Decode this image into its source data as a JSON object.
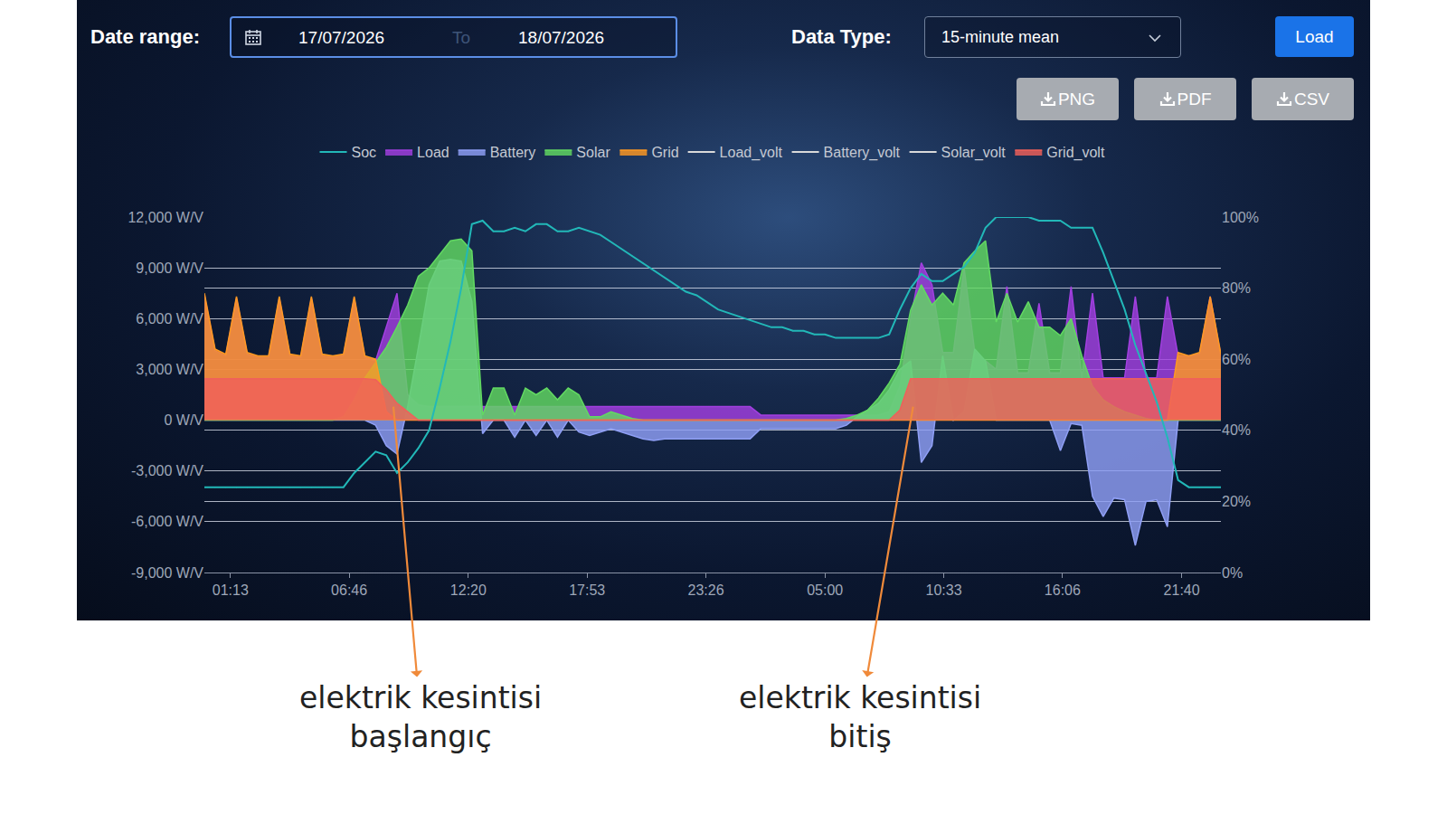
{
  "controls": {
    "date_range": {
      "label": "Date range:",
      "from": "17/07/2026",
      "separator": "To",
      "to": "18/07/2026"
    },
    "data_type": {
      "label": "Data Type:",
      "value": "15-minute mean"
    },
    "load_button": "Load",
    "export_buttons": [
      "PNG",
      "PDF",
      "CSV"
    ]
  },
  "chart_data": {
    "type": "area",
    "x": [
      0,
      30,
      60,
      90,
      120,
      150,
      180,
      210,
      240,
      270,
      300,
      330,
      360,
      390,
      420,
      450,
      480,
      510,
      540,
      570,
      600,
      630,
      660,
      690,
      720,
      750,
      780,
      810,
      840,
      870,
      900,
      930,
      960,
      990,
      1020,
      1050,
      1080,
      1110,
      1140,
      1170,
      1200,
      1230,
      1260,
      1290,
      1320,
      1350,
      1380,
      1410,
      1440,
      1470,
      1500,
      1530,
      1560,
      1590,
      1620,
      1650,
      1680,
      1710,
      1740,
      1770,
      1800,
      1830,
      1860,
      1890,
      1920,
      1950,
      1980,
      2010,
      2040,
      2070,
      2100,
      2130,
      2160,
      2190,
      2220,
      2250,
      2280,
      2310,
      2340,
      2370,
      2400,
      2430,
      2460,
      2490,
      2520,
      2550,
      2580,
      2610,
      2640,
      2670,
      2700,
      2730,
      2760,
      2790,
      2820,
      2850
    ],
    "xlim": [
      0,
      2850
    ],
    "xticks": [
      {
        "value": 73,
        "label": "01:13"
      },
      {
        "value": 406,
        "label": "06:46"
      },
      {
        "value": 740,
        "label": "12:20"
      },
      {
        "value": 1073,
        "label": "17:53"
      },
      {
        "value": 1406,
        "label": "23:26"
      },
      {
        "value": 1740,
        "label": "05:00"
      },
      {
        "value": 2073,
        "label": "10:33"
      },
      {
        "value": 2406,
        "label": "16:06"
      },
      {
        "value": 2740,
        "label": "21:40"
      }
    ],
    "ylim": [
      -9000,
      12000
    ],
    "yticks": [
      {
        "value": -9000,
        "label": "-9,000 W/V"
      },
      {
        "value": -6000,
        "label": "-6,000 W/V"
      },
      {
        "value": -3000,
        "label": "-3,000 W/V"
      },
      {
        "value": 0,
        "label": "0 W/V"
      },
      {
        "value": 3000,
        "label": "3,000 W/V"
      },
      {
        "value": 6000,
        "label": "6,000 W/V"
      },
      {
        "value": 9000,
        "label": "9,000 W/V"
      },
      {
        "value": 12000,
        "label": "12,000 W/V"
      }
    ],
    "y2lim": [
      0,
      100
    ],
    "y2ticks": [
      {
        "value": 0,
        "label": "0%"
      },
      {
        "value": 20,
        "label": "20%"
      },
      {
        "value": 40,
        "label": "40%"
      },
      {
        "value": 60,
        "label": "60%"
      },
      {
        "value": 80,
        "label": "80%"
      },
      {
        "value": 100,
        "label": "100%"
      }
    ],
    "grid": true,
    "legend": "top",
    "series": [
      {
        "name": "Soc",
        "type": "line",
        "axis": "y2",
        "color": "#22b8b8",
        "values": [
          24,
          24,
          24,
          24,
          24,
          24,
          24,
          24,
          24,
          24,
          24,
          24,
          24,
          24,
          28,
          31,
          34,
          33,
          28,
          31,
          35,
          40,
          52,
          65,
          80,
          98,
          99,
          96,
          96,
          97,
          96,
          98,
          98,
          96,
          96,
          97,
          96,
          95,
          93,
          91,
          89,
          87,
          85,
          83,
          81,
          79,
          78,
          76,
          74,
          73,
          72,
          71,
          70,
          69,
          69,
          68,
          68,
          67,
          67,
          66,
          66,
          66,
          66,
          66,
          67,
          74,
          80,
          84,
          82,
          82,
          84,
          86,
          90,
          97,
          100,
          100,
          100,
          100,
          99,
          99,
          99,
          97,
          97,
          97,
          90,
          82,
          74,
          64,
          56,
          48,
          38,
          26,
          24,
          24,
          24,
          24
        ]
      },
      {
        "name": "Load",
        "type": "area",
        "color": "#a23fe0",
        "values": [
          7400,
          4100,
          3800,
          7200,
          3900,
          3700,
          3700,
          7200,
          3800,
          3700,
          7200,
          3800,
          3700,
          3800,
          7200,
          3700,
          3500,
          5500,
          7500,
          1500,
          900,
          800,
          800,
          800,
          800,
          800,
          800,
          800,
          800,
          800,
          800,
          800,
          800,
          800,
          800,
          800,
          800,
          800,
          800,
          800,
          800,
          800,
          800,
          800,
          800,
          800,
          800,
          800,
          800,
          800,
          800,
          800,
          300,
          300,
          300,
          300,
          300,
          300,
          300,
          300,
          300,
          300,
          300,
          300,
          500,
          2000,
          6000,
          9300,
          8000,
          4000,
          4000,
          9000,
          4000,
          3500,
          3000,
          7900,
          2800,
          2800,
          6900,
          2800,
          2800,
          7900,
          2500,
          7500,
          2500,
          2500,
          2500,
          7300,
          2500,
          2500,
          7300,
          3800,
          3800,
          3900,
          7300,
          3800
        ]
      },
      {
        "name": "Battery",
        "type": "area",
        "color": "#8f9ff5",
        "values": [
          0,
          0,
          0,
          0,
          0,
          0,
          0,
          0,
          0,
          0,
          0,
          0,
          0,
          0,
          0,
          0,
          -300,
          -1500,
          -2000,
          800,
          4300,
          8000,
          9400,
          9500,
          9400,
          7000,
          -800,
          0,
          0,
          -1000,
          0,
          -900,
          0,
          -1000,
          0,
          -700,
          -900,
          -700,
          -500,
          -700,
          -900,
          -1100,
          -1200,
          -1100,
          -1100,
          -1100,
          -1100,
          -1100,
          -1100,
          -1100,
          -1100,
          -1100,
          -500,
          -500,
          -500,
          -500,
          -500,
          -500,
          -500,
          -500,
          -300,
          200,
          600,
          1000,
          1800,
          3000,
          3500,
          -2500,
          -1500,
          3800,
          0,
          500,
          4200,
          3500,
          0,
          0,
          0,
          0,
          0,
          0,
          -1800,
          -200,
          -300,
          -4500,
          -5700,
          -4600,
          -4700,
          -7400,
          -4800,
          -4700,
          -6300,
          0,
          0,
          0,
          0,
          0
        ]
      },
      {
        "name": "Solar",
        "type": "area",
        "color": "#62d962",
        "values": [
          0,
          0,
          0,
          0,
          0,
          0,
          0,
          0,
          0,
          0,
          0,
          0,
          0,
          200,
          1200,
          2500,
          3400,
          4300,
          5500,
          6800,
          8500,
          9000,
          9800,
          10600,
          10700,
          10000,
          300,
          1900,
          1900,
          300,
          1900,
          1500,
          1900,
          1200,
          1900,
          1500,
          200,
          200,
          500,
          300,
          100,
          0,
          0,
          0,
          0,
          0,
          0,
          0,
          0,
          0,
          0,
          0,
          0,
          0,
          0,
          0,
          0,
          0,
          0,
          0,
          100,
          300,
          600,
          1300,
          2200,
          3300,
          6500,
          8000,
          6800,
          7500,
          6800,
          9300,
          10000,
          10600,
          5800,
          7500,
          5800,
          7000,
          5500,
          5500,
          5000,
          6000,
          3800,
          2000,
          1200,
          800,
          500,
          300,
          100,
          0,
          0,
          0,
          0,
          0,
          0,
          0
        ]
      },
      {
        "name": "Grid",
        "type": "area",
        "color": "#ff9922",
        "values": [
          7500,
          4200,
          3900,
          7300,
          4000,
          3800,
          3800,
          7300,
          3900,
          3800,
          7300,
          3900,
          3800,
          3900,
          7300,
          3800,
          3600,
          500,
          0,
          0,
          0,
          0,
          0,
          0,
          0,
          0,
          0,
          0,
          0,
          0,
          0,
          0,
          0,
          0,
          0,
          0,
          0,
          0,
          0,
          0,
          0,
          0,
          0,
          0,
          0,
          0,
          0,
          0,
          0,
          0,
          0,
          0,
          0,
          0,
          0,
          0,
          0,
          0,
          0,
          0,
          0,
          0,
          0,
          0,
          0,
          0,
          0,
          0,
          0,
          0,
          0,
          0,
          0,
          0,
          0,
          0,
          0,
          0,
          0,
          0,
          0,
          0,
          0,
          0,
          0,
          0,
          0,
          0,
          0,
          0,
          0,
          4000,
          3800,
          4000,
          7300,
          3900
        ]
      },
      {
        "name": "Load_volt",
        "type": "line",
        "color": "#d9d9d9",
        "values": [
          null,
          null,
          null,
          null,
          null,
          null,
          null,
          null,
          null,
          null,
          null,
          null,
          null,
          null,
          null,
          null,
          null,
          null,
          null,
          null,
          null,
          null,
          null,
          null,
          null,
          null,
          null,
          null,
          null,
          null,
          null,
          null,
          null,
          null,
          null,
          null,
          null,
          null,
          null,
          null,
          null,
          null,
          null,
          null,
          null,
          null,
          null,
          null,
          null,
          null,
          null,
          null,
          null,
          null,
          null,
          null,
          null,
          null,
          null,
          null,
          null,
          null,
          null,
          null,
          null,
          null,
          null,
          null,
          null,
          null,
          null,
          null,
          null,
          null,
          null,
          null,
          null,
          null,
          null,
          null,
          null,
          null,
          null,
          null,
          null,
          null,
          null,
          null,
          null,
          null,
          null,
          null,
          null,
          null,
          null,
          null
        ]
      },
      {
        "name": "Battery_volt",
        "type": "line",
        "color": "#d9d9d9",
        "values": [
          null,
          null,
          null,
          null,
          null,
          null,
          null,
          null,
          null,
          null,
          null,
          null,
          null,
          null,
          null,
          null,
          null,
          null,
          null,
          null,
          null,
          null,
          null,
          null,
          null,
          null,
          null,
          null,
          null,
          null,
          null,
          null,
          null,
          null,
          null,
          null,
          null,
          null,
          null,
          null,
          null,
          null,
          null,
          null,
          null,
          null,
          null,
          null,
          null,
          null,
          null,
          null,
          null,
          null,
          null,
          null,
          null,
          null,
          null,
          null,
          null,
          null,
          null,
          null,
          null,
          null,
          null,
          null,
          null,
          null,
          null,
          null,
          null,
          null,
          null,
          null,
          null,
          null,
          null,
          null,
          null,
          null,
          null,
          null,
          null,
          null,
          null,
          null,
          null,
          null,
          null,
          null,
          null,
          null,
          null,
          null
        ]
      },
      {
        "name": "Solar_volt",
        "type": "line",
        "color": "#d9d9d9",
        "values": [
          null,
          null,
          null,
          null,
          null,
          null,
          null,
          null,
          null,
          null,
          null,
          null,
          null,
          null,
          null,
          null,
          null,
          null,
          null,
          null,
          null,
          null,
          null,
          null,
          null,
          null,
          null,
          null,
          null,
          null,
          null,
          null,
          null,
          null,
          null,
          null,
          null,
          null,
          null,
          null,
          null,
          null,
          null,
          null,
          null,
          null,
          null,
          null,
          null,
          null,
          null,
          null,
          null,
          null,
          null,
          null,
          null,
          null,
          null,
          null,
          null,
          null,
          null,
          null,
          null,
          null,
          null,
          null,
          null,
          null,
          null,
          null,
          null,
          null,
          null,
          null,
          null,
          null,
          null,
          null,
          null,
          null,
          null,
          null,
          null,
          null,
          null,
          null,
          null,
          null,
          null,
          null,
          null,
          null,
          null,
          null
        ]
      },
      {
        "name": "Grid_volt",
        "type": "area",
        "color": "#f0605a",
        "values": [
          2450,
          2450,
          2450,
          2450,
          2450,
          2450,
          2450,
          2450,
          2450,
          2450,
          2450,
          2450,
          2450,
          2450,
          2450,
          2450,
          2400,
          1800,
          1000,
          500,
          0,
          0,
          0,
          0,
          0,
          0,
          0,
          0,
          0,
          0,
          0,
          0,
          0,
          0,
          0,
          0,
          0,
          0,
          0,
          0,
          0,
          0,
          0,
          0,
          0,
          0,
          0,
          0,
          0,
          0,
          0,
          0,
          0,
          0,
          0,
          0,
          0,
          0,
          0,
          0,
          0,
          0,
          0,
          0,
          0,
          600,
          2450,
          2450,
          2450,
          2450,
          2450,
          2450,
          2450,
          2450,
          2450,
          2450,
          2450,
          2450,
          2450,
          2450,
          2450,
          2450,
          2450,
          2450,
          2450,
          2450,
          2450,
          2450,
          2450,
          2450,
          2450,
          2450,
          2450,
          2450,
          2450,
          2450
        ]
      }
    ],
    "annotations": [
      {
        "text": "elektrik kesintisi\nbaşlangıç",
        "x": 530,
        "y": 800
      },
      {
        "text": "elektrik kesintisi\nbitiş",
        "x": 1987,
        "y": 800
      }
    ]
  }
}
